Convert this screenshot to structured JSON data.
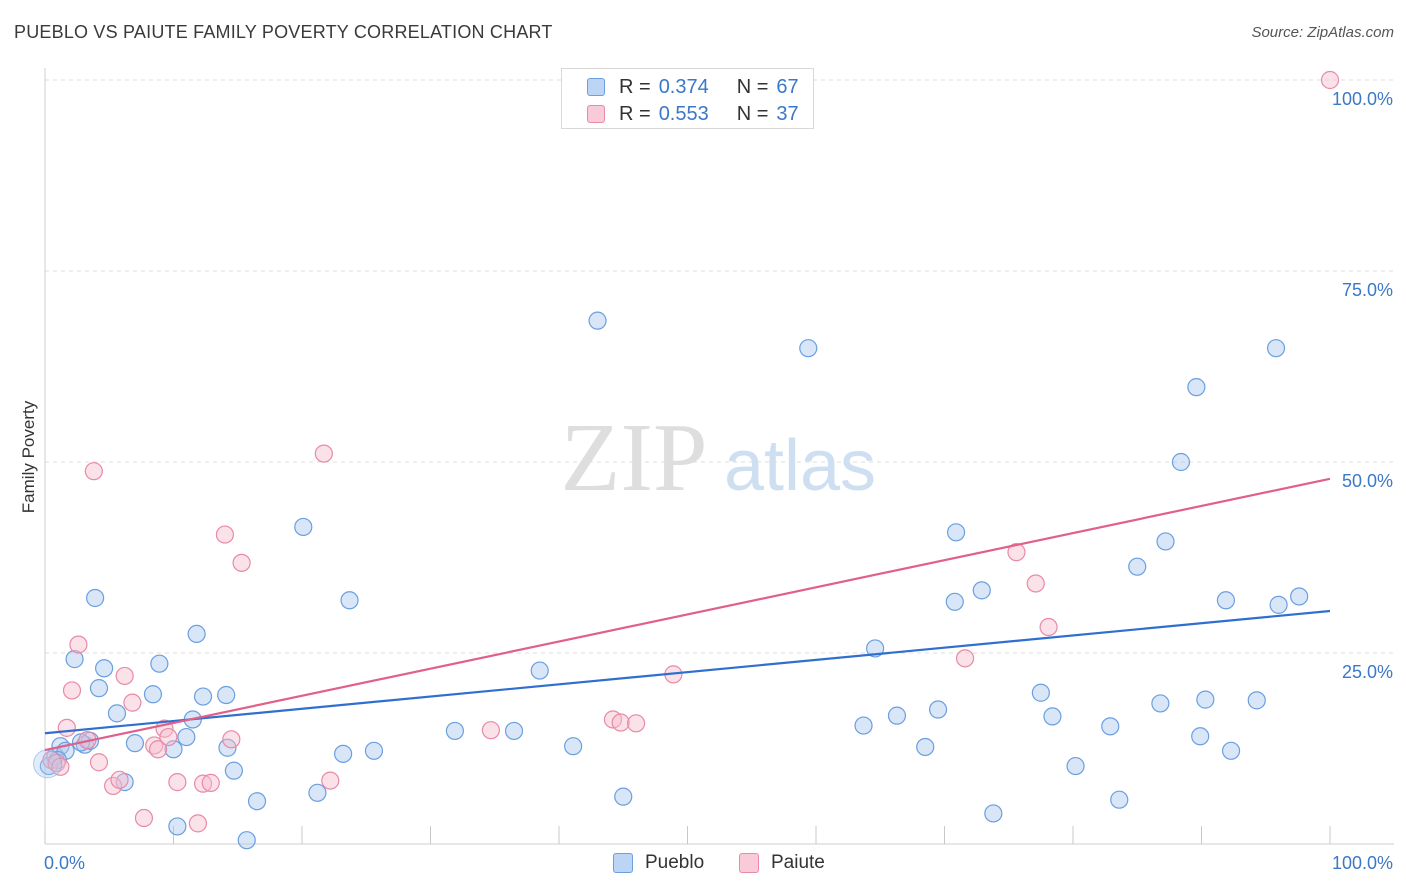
{
  "header": {
    "title": "PUEBLO VS PAIUTE FAMILY POVERTY CORRELATION CHART",
    "source": "Source: ZipAtlas.com"
  },
  "legend_top": {
    "rows": [
      {
        "r_label": "R =",
        "r_value": "0.374",
        "n_label": "N =",
        "n_value": "67"
      },
      {
        "r_label": "R =",
        "r_value": "0.553",
        "n_label": "N =",
        "n_value": "37"
      }
    ]
  },
  "legend_bottom": {
    "items": [
      "Pueblo",
      "Paiute"
    ]
  },
  "watermark": {
    "zip": "ZIP",
    "atlas": "atlas"
  },
  "colors": {
    "pueblo_fill": "#a8c8f0",
    "pueblo_stroke": "#6a9fe0",
    "pueblo_line": "#2f6fcf",
    "paiute_fill": "#f6bccd",
    "paiute_stroke": "#e88aa8",
    "paiute_line": "#e0608a",
    "tick_label": "#3b78c8",
    "grid": "#dcdcdc"
  },
  "chart_data": {
    "type": "scatter",
    "title": "PUEBLO VS PAIUTE FAMILY POVERTY CORRELATION CHART",
    "xlabel": "",
    "ylabel": "Family Poverty",
    "xlim": [
      0,
      100
    ],
    "ylim": [
      0,
      100
    ],
    "x_tick_labels": [
      "0.0%",
      "100.0%"
    ],
    "y_tick_labels": [
      {
        "value": 25,
        "label": "25.0%"
      },
      {
        "value": 50,
        "label": "50.0%"
      },
      {
        "value": 75,
        "label": "75.0%"
      },
      {
        "value": 100,
        "label": "100.0%"
      }
    ],
    "grid": true,
    "legend_position": "bottom",
    "series": [
      {
        "name": "Pueblo",
        "r": 0.374,
        "n": 67,
        "trend": {
          "x": [
            0,
            100
          ],
          "y": [
            14.5,
            30.5
          ]
        },
        "points": [
          [
            0.3,
            10.2
          ],
          [
            0.8,
            11.5
          ],
          [
            1.2,
            12.8
          ],
          [
            1.6,
            12.2
          ],
          [
            2.3,
            24.2
          ],
          [
            3.1,
            13.0
          ],
          [
            3.5,
            13.5
          ],
          [
            3.9,
            32.2
          ],
          [
            4.2,
            20.4
          ],
          [
            4.6,
            23.0
          ],
          [
            5.6,
            17.1
          ],
          [
            6.2,
            8.1
          ],
          [
            7.0,
            13.2
          ],
          [
            8.4,
            19.6
          ],
          [
            8.9,
            23.6
          ],
          [
            10.0,
            12.4
          ],
          [
            10.3,
            2.3
          ],
          [
            11.0,
            14.0
          ],
          [
            11.5,
            16.3
          ],
          [
            11.8,
            27.5
          ],
          [
            12.3,
            19.3
          ],
          [
            14.1,
            19.5
          ],
          [
            14.2,
            12.6
          ],
          [
            14.7,
            9.6
          ],
          [
            15.7,
            0.5
          ],
          [
            16.5,
            5.6
          ],
          [
            20.1,
            41.5
          ],
          [
            21.2,
            6.7
          ],
          [
            23.2,
            11.8
          ],
          [
            23.7,
            31.9
          ],
          [
            25.6,
            12.2
          ],
          [
            31.9,
            14.8
          ],
          [
            36.5,
            14.8
          ],
          [
            38.5,
            22.7
          ],
          [
            41.1,
            12.8
          ],
          [
            43.0,
            68.5
          ],
          [
            45.0,
            6.2
          ],
          [
            59.4,
            64.9
          ],
          [
            63.7,
            15.5
          ],
          [
            64.6,
            25.6
          ],
          [
            66.3,
            16.8
          ],
          [
            68.5,
            12.7
          ],
          [
            69.5,
            17.6
          ],
          [
            70.8,
            31.7
          ],
          [
            70.9,
            40.8
          ],
          [
            72.9,
            33.2
          ],
          [
            73.8,
            4.0
          ],
          [
            77.5,
            19.8
          ],
          [
            78.4,
            16.7
          ],
          [
            80.2,
            10.2
          ],
          [
            82.9,
            15.4
          ],
          [
            83.6,
            5.8
          ],
          [
            85.0,
            36.3
          ],
          [
            86.8,
            18.4
          ],
          [
            87.2,
            39.6
          ],
          [
            88.4,
            50.0
          ],
          [
            89.6,
            59.8
          ],
          [
            89.9,
            14.1
          ],
          [
            90.3,
            18.9
          ],
          [
            91.9,
            31.9
          ],
          [
            92.3,
            12.2
          ],
          [
            94.3,
            18.8
          ],
          [
            95.8,
            64.9
          ],
          [
            96.0,
            31.3
          ],
          [
            97.6,
            32.4
          ],
          [
            2.8,
            13.3
          ],
          [
            1.0,
            11.0
          ]
        ]
      },
      {
        "name": "Paiute",
        "r": 0.553,
        "n": 37,
        "trend": {
          "x": [
            0,
            100
          ],
          "y": [
            12.3,
            47.8
          ]
        },
        "points": [
          [
            0.5,
            11.0
          ],
          [
            0.9,
            10.6
          ],
          [
            1.2,
            10.1
          ],
          [
            1.7,
            15.2
          ],
          [
            2.1,
            20.1
          ],
          [
            2.6,
            26.1
          ],
          [
            3.3,
            13.6
          ],
          [
            3.8,
            48.8
          ],
          [
            4.2,
            10.7
          ],
          [
            5.3,
            7.6
          ],
          [
            5.8,
            8.4
          ],
          [
            6.2,
            22.0
          ],
          [
            6.8,
            18.5
          ],
          [
            7.7,
            3.4
          ],
          [
            8.5,
            12.9
          ],
          [
            8.8,
            12.4
          ],
          [
            9.3,
            15.1
          ],
          [
            9.6,
            14.0
          ],
          [
            10.3,
            8.1
          ],
          [
            11.9,
            2.7
          ],
          [
            12.3,
            7.9
          ],
          [
            12.9,
            8.0
          ],
          [
            14.0,
            40.5
          ],
          [
            14.5,
            13.7
          ],
          [
            15.3,
            36.8
          ],
          [
            21.7,
            51.1
          ],
          [
            22.2,
            8.3
          ],
          [
            34.7,
            14.9
          ],
          [
            44.2,
            16.3
          ],
          [
            44.8,
            15.9
          ],
          [
            46.0,
            15.8
          ],
          [
            48.9,
            22.2
          ],
          [
            71.6,
            24.3
          ],
          [
            75.6,
            38.2
          ],
          [
            77.1,
            34.1
          ],
          [
            78.1,
            28.4
          ],
          [
            100.0,
            100.0
          ]
        ]
      }
    ]
  }
}
